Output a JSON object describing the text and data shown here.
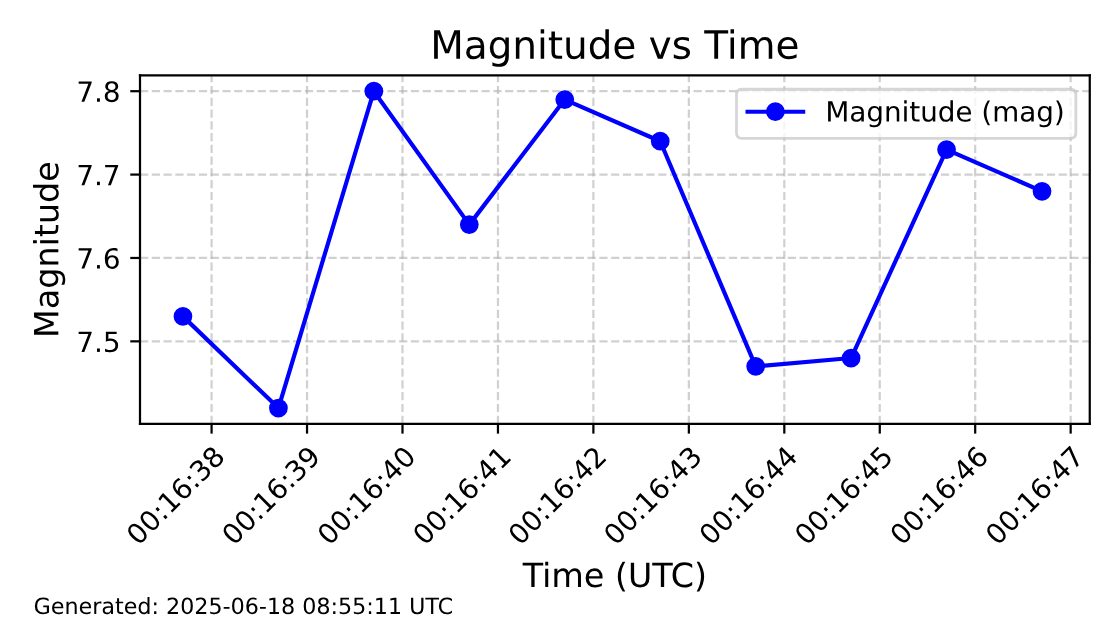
{
  "chart_data": {
    "type": "line",
    "title": "Magnitude vs Time",
    "xlabel": "Time (UTC)",
    "ylabel": "Magnitude",
    "x": [
      0.2771389,
      0.2774167,
      0.2776944,
      0.2779722,
      0.27825,
      0.2785278,
      0.2788056,
      0.2790833,
      0.2793611,
      0.2796389
    ],
    "series": [
      {
        "name": "Magnitude (mag)",
        "color": "#0000ff",
        "values": [
          7.53,
          7.42,
          7.8,
          7.64,
          7.79,
          7.74,
          7.47,
          7.48,
          7.73,
          7.68
        ]
      }
    ],
    "xlim": [
      0.2770139,
      0.2797778
    ],
    "xticks": [
      {
        "value": 0.2772222,
        "label": "00:16:38"
      },
      {
        "value": 0.2775,
        "label": "00:16:39"
      },
      {
        "value": 0.2777778,
        "label": "00:16:40"
      },
      {
        "value": 0.2780556,
        "label": "00:16:41"
      },
      {
        "value": 0.2783333,
        "label": "00:16:42"
      },
      {
        "value": 0.2786111,
        "label": "00:16:43"
      },
      {
        "value": 0.2788889,
        "label": "00:16:44"
      },
      {
        "value": 0.2791667,
        "label": "00:16:45"
      },
      {
        "value": 0.2794444,
        "label": "00:16:46"
      },
      {
        "value": 0.2797222,
        "label": "00:16:47"
      }
    ],
    "ylim": [
      7.401,
      7.819
    ],
    "yticks": [
      7.5,
      7.6,
      7.7,
      7.8
    ],
    "grid": true,
    "legend": "top right",
    "marker": "circle",
    "line_style": "solid",
    "annotations": [
      "Generated: 2025-06-18 08:55:11 UTC"
    ]
  }
}
